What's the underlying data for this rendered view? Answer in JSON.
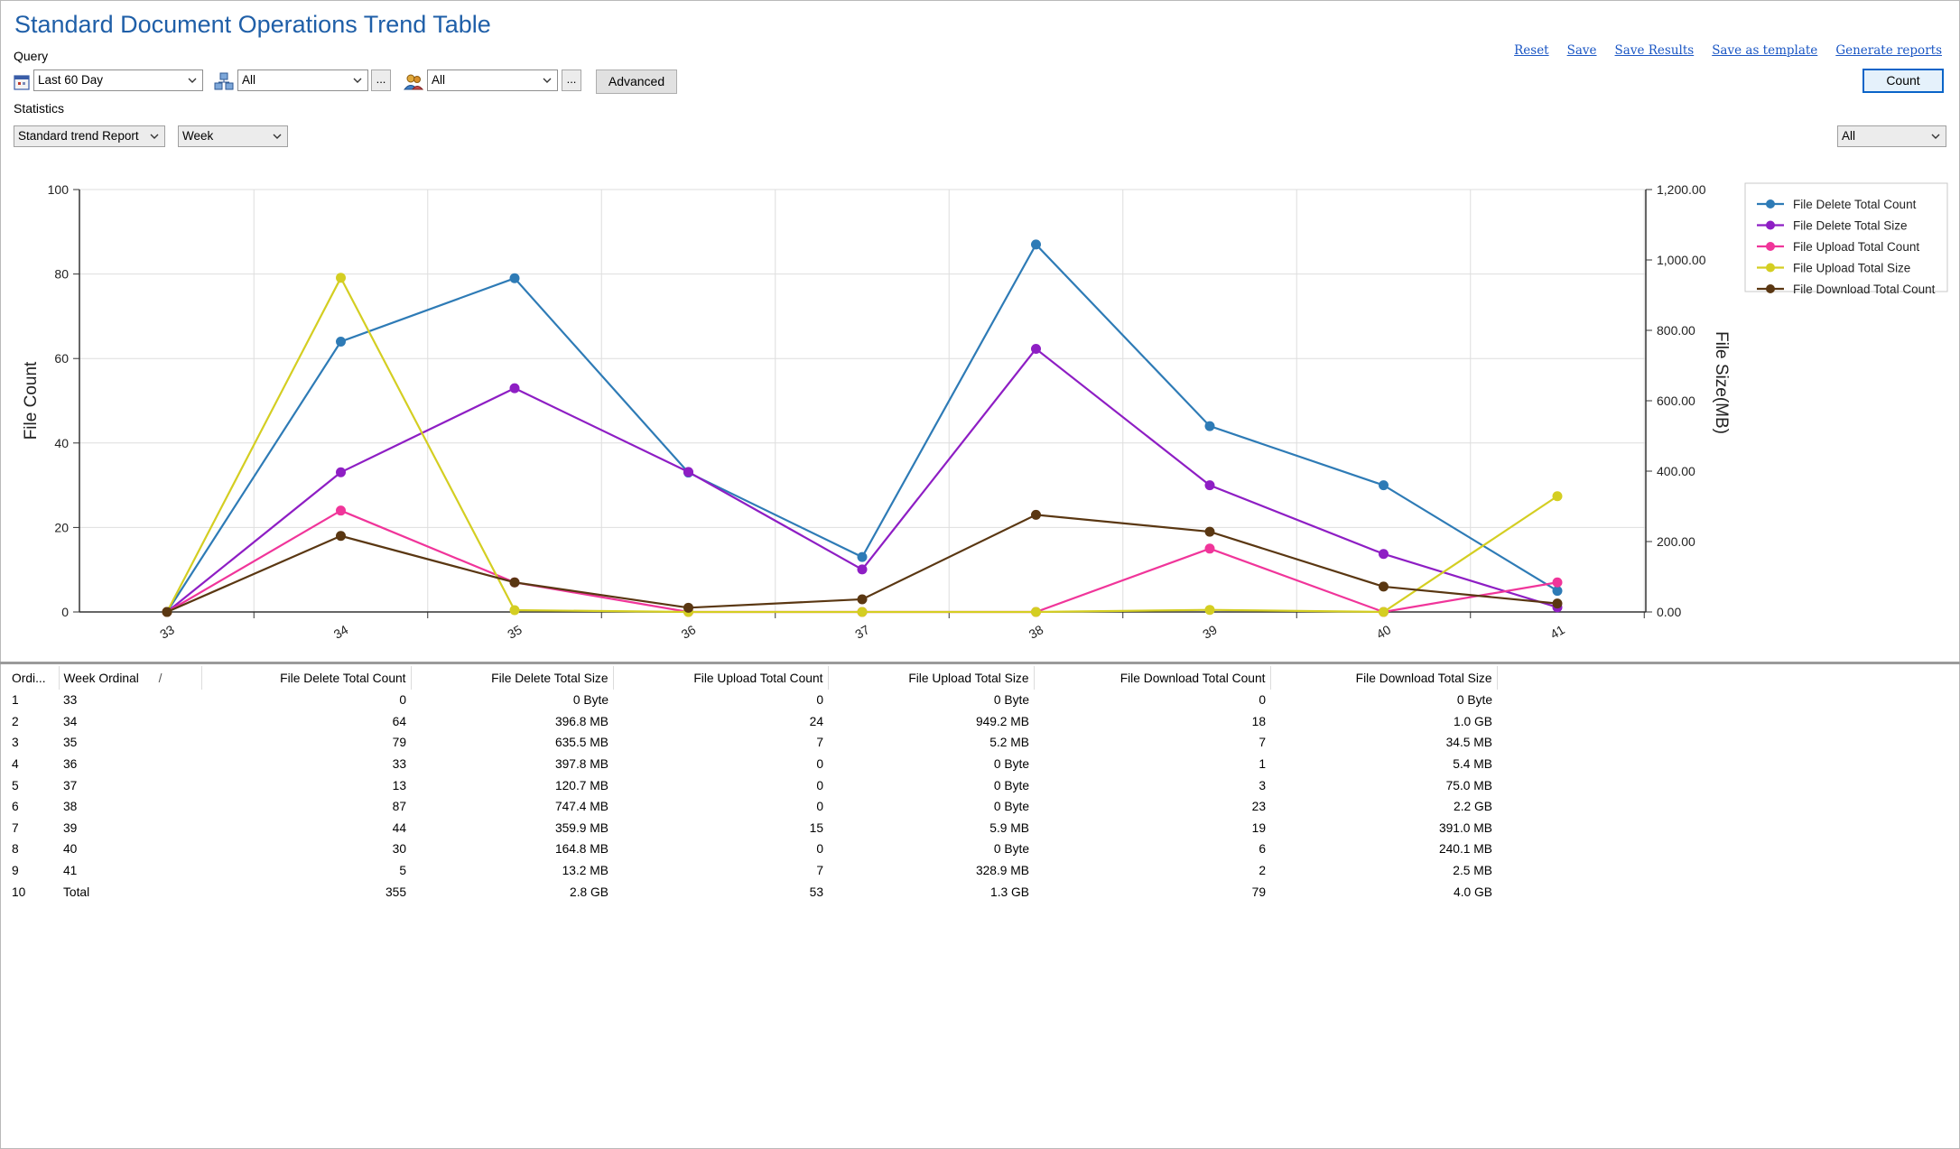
{
  "title": "Standard Document Operations Trend Table",
  "query_label": "Query",
  "statistics_label": "Statistics",
  "links": [
    "Reset",
    "Save",
    "Save Results",
    "Save as template",
    "Generate reports"
  ],
  "filters": {
    "date_range": "Last 60 Day",
    "server": "All",
    "users": "All",
    "ellipsis": "...",
    "advanced": "Advanced"
  },
  "count_button": "Count",
  "report_type": "Standard trend Report",
  "granularity": "Week",
  "right_filter": "All",
  "chart_data": {
    "type": "line",
    "x": [
      "33",
      "34",
      "35",
      "36",
      "37",
      "38",
      "39",
      "40",
      "41"
    ],
    "ylabel": "File Count",
    "y2label": "File Size(MB)",
    "ylim": [
      0,
      100
    ],
    "yticks": [
      "0",
      "20",
      "40",
      "60",
      "80",
      "100"
    ],
    "y2lim": [
      0,
      1200
    ],
    "y2ticks": [
      "0.00",
      "200.00",
      "400.00",
      "600.00",
      "800.00",
      "1,000.00",
      "1,200.00"
    ],
    "grid": true,
    "legend_position": "top-right",
    "series": [
      {
        "name": "File Delete Total Count",
        "axis": "left",
        "color": "#2e7bb6",
        "values": [
          0,
          64,
          79,
          33,
          13,
          87,
          44,
          30,
          5
        ]
      },
      {
        "name": "File Delete Total Size",
        "axis": "right",
        "color": "#8e1ec4",
        "values": [
          0,
          396.8,
          635.5,
          397.8,
          120.7,
          747.4,
          359.9,
          164.8,
          13.2
        ]
      },
      {
        "name": "File Upload Total Count",
        "axis": "left",
        "color": "#f0359a",
        "values": [
          0,
          24,
          7,
          0,
          0,
          0,
          15,
          0,
          7
        ]
      },
      {
        "name": "File Upload Total Size",
        "axis": "right",
        "color": "#d4ce22",
        "values": [
          0,
          949.2,
          5.2,
          0,
          0,
          0,
          5.9,
          0,
          328.9
        ]
      },
      {
        "name": "File Download Total Count",
        "axis": "left",
        "color": "#5a3712",
        "values": [
          0,
          18,
          7,
          1,
          3,
          23,
          19,
          6,
          2
        ]
      }
    ]
  },
  "table": {
    "headers": [
      "Ordi...",
      "Week Ordinal",
      "File Delete Total Count",
      "File Delete Total Size",
      "File Upload Total Count",
      "File Upload Total Size",
      "File Download Total Count",
      "File Download Total Size"
    ],
    "sort_indicator": "/",
    "rows": [
      [
        "1",
        "33",
        "0",
        "0 Byte",
        "0",
        "0 Byte",
        "0",
        "0 Byte"
      ],
      [
        "2",
        "34",
        "64",
        "396.8 MB",
        "24",
        "949.2 MB",
        "18",
        "1.0 GB"
      ],
      [
        "3",
        "35",
        "79",
        "635.5 MB",
        "7",
        "5.2 MB",
        "7",
        "34.5 MB"
      ],
      [
        "4",
        "36",
        "33",
        "397.8 MB",
        "0",
        "0 Byte",
        "1",
        "5.4 MB"
      ],
      [
        "5",
        "37",
        "13",
        "120.7 MB",
        "0",
        "0 Byte",
        "3",
        "75.0 MB"
      ],
      [
        "6",
        "38",
        "87",
        "747.4 MB",
        "0",
        "0 Byte",
        "23",
        "2.2 GB"
      ],
      [
        "7",
        "39",
        "44",
        "359.9 MB",
        "15",
        "5.9 MB",
        "19",
        "391.0 MB"
      ],
      [
        "8",
        "40",
        "30",
        "164.8 MB",
        "0",
        "0 Byte",
        "6",
        "240.1 MB"
      ],
      [
        "9",
        "41",
        "5",
        "13.2 MB",
        "7",
        "328.9 MB",
        "2",
        "2.5 MB"
      ],
      [
        "10",
        "Total",
        "355",
        "2.8 GB",
        "53",
        "1.3 GB",
        "79",
        "4.0 GB"
      ]
    ]
  }
}
